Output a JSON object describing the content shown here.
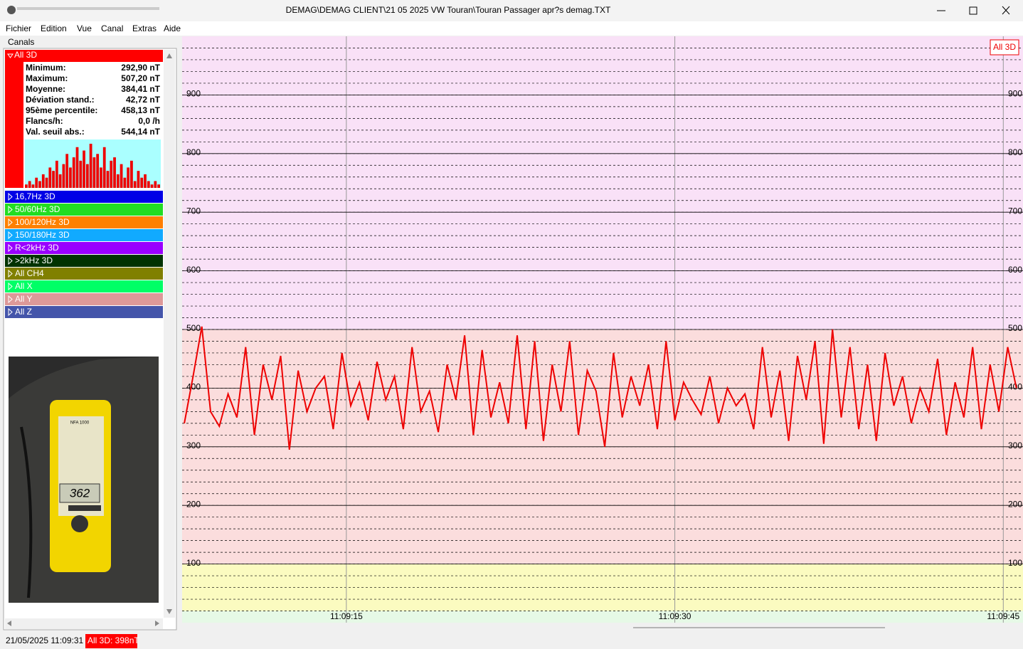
{
  "window": {
    "title": "DEMAG\\DEMAG CLIENT\\21 05 2025 VW Touran\\Touran Passager apr?s demag.TXT"
  },
  "menu": [
    "Fichier",
    "Edition",
    "Vue",
    "Canal",
    "Extras",
    "Aide"
  ],
  "panel": {
    "title": "Canals",
    "channels": [
      {
        "name": "All 3D",
        "color": "#ff0000"
      },
      {
        "name": "16,7Hz 3D",
        "color": "#0000e6"
      },
      {
        "name": "50/60Hz 3D",
        "color": "#22dd22"
      },
      {
        "name": "100/120Hz 3D",
        "color": "#ff8000"
      },
      {
        "name": "150/180Hz 3D",
        "color": "#11aaff"
      },
      {
        "name": "R<2kHz 3D",
        "color": "#9900ff"
      },
      {
        "name": ">2kHz 3D",
        "color": "#003300"
      },
      {
        "name": "All CH4",
        "color": "#808000"
      },
      {
        "name": "All X",
        "color": "#00ff66"
      },
      {
        "name": "All Y",
        "color": "#dd9999"
      },
      {
        "name": "All Z",
        "color": "#4455aa"
      }
    ],
    "stats": [
      [
        "Minimum:",
        "292,90 nT"
      ],
      [
        "Maximum:",
        "507,20 nT"
      ],
      [
        "Moyenne:",
        "384,41 nT"
      ],
      [
        "Déviation stand.:",
        "42,72 nT"
      ],
      [
        "95ème percentile:",
        "458,13 nT"
      ],
      [
        "Flancs/h:",
        "0,0 /h"
      ],
      [
        "Val. seuil abs.:",
        "544,14 nT"
      ]
    ],
    "histogram": {
      "color": "#ee0000",
      "background": "#aaffff",
      "values": [
        1,
        2,
        1,
        3,
        2,
        4,
        3,
        6,
        5,
        8,
        4,
        7,
        10,
        6,
        9,
        12,
        8,
        11,
        7,
        13,
        9,
        10,
        6,
        12,
        5,
        8,
        9,
        4,
        7,
        3,
        6,
        8,
        2,
        5,
        3,
        4,
        2,
        1,
        2,
        1
      ]
    }
  },
  "photo": {
    "display": "362",
    "label": "NFA 1000"
  },
  "status": {
    "datetime": "21/05/2025 11:09:31",
    "reading": "All 3D: 398nT"
  },
  "chart_data": {
    "type": "line",
    "legend": "All 3D",
    "xlim": [
      7.5,
      45.9
    ],
    "xticks": [
      {
        "value": 15,
        "label": "11:09:15"
      },
      {
        "value": 30,
        "label": "11:09:30"
      },
      {
        "value": 45,
        "label": "11:09:45"
      }
    ],
    "ylim": [
      0,
      1000
    ],
    "yticks": [
      100,
      200,
      300,
      400,
      500,
      600,
      700,
      800,
      900
    ],
    "bands": [
      {
        "from": 0,
        "to": 20,
        "color": "#e6f9e6"
      },
      {
        "from": 20,
        "to": 100,
        "color": "#fbfbc0"
      },
      {
        "from": 100,
        "to": 500,
        "color": "#fbdddd"
      },
      {
        "from": 500,
        "to": 1000,
        "color": "#f9e1f7"
      }
    ],
    "series": [
      {
        "name": "All 3D",
        "color": "#ee0000",
        "x": [
          7.6,
          8.0,
          8.4,
          8.8,
          9.2,
          9.6,
          10.0,
          10.4,
          10.8,
          11.2,
          11.6,
          12.0,
          12.4,
          12.8,
          13.2,
          13.6,
          14.0,
          14.4,
          14.8,
          15.2,
          15.6,
          16.0,
          16.4,
          16.8,
          17.2,
          17.6,
          18.0,
          18.4,
          18.8,
          19.2,
          19.6,
          20.0,
          20.4,
          20.8,
          21.2,
          21.6,
          22.0,
          22.4,
          22.8,
          23.2,
          23.6,
          24.0,
          24.4,
          24.8,
          25.2,
          25.6,
          26.0,
          26.4,
          26.8,
          27.2,
          27.6,
          28.0,
          28.4,
          28.8,
          29.2,
          29.6,
          30.0,
          30.4,
          30.8,
          31.2,
          31.6,
          32.0,
          32.4,
          32.8,
          33.2,
          33.6,
          34.0,
          34.4,
          34.8,
          35.2,
          35.6,
          36.0,
          36.4,
          36.8,
          37.2,
          37.6,
          38.0,
          38.4,
          38.8,
          39.2,
          39.6,
          40.0,
          40.4,
          40.8,
          41.2,
          41.6,
          42.0,
          42.4,
          42.8,
          43.2,
          43.6,
          44.0,
          44.4,
          44.8,
          45.2,
          45.6
        ],
        "values": [
          340,
          420,
          505,
          360,
          335,
          390,
          350,
          470,
          320,
          440,
          380,
          455,
          295,
          430,
          360,
          400,
          420,
          330,
          460,
          370,
          410,
          345,
          445,
          380,
          420,
          330,
          470,
          360,
          395,
          325,
          440,
          380,
          490,
          320,
          465,
          350,
          410,
          340,
          490,
          330,
          480,
          310,
          440,
          360,
          480,
          320,
          430,
          395,
          300,
          460,
          350,
          420,
          370,
          440,
          330,
          480,
          345,
          410,
          380,
          355,
          420,
          340,
          400,
          370,
          390,
          330,
          470,
          350,
          430,
          310,
          455,
          380,
          480,
          305,
          500,
          350,
          470,
          330,
          440,
          310,
          460,
          370,
          420,
          340,
          400,
          360,
          450,
          320,
          410,
          350,
          470,
          330,
          440,
          360,
          470,
          400
        ]
      }
    ]
  }
}
